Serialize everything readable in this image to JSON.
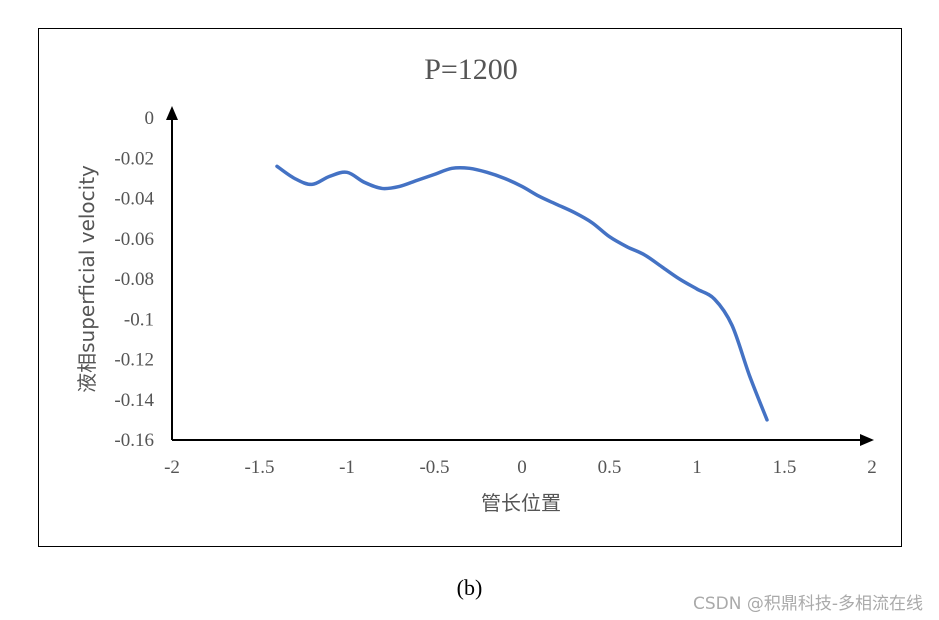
{
  "chart_data": {
    "type": "line",
    "title": "P=1200",
    "xlabel": "管长位置",
    "ylabel": "液相superficial velocity",
    "xlim": [
      -2,
      2
    ],
    "ylim": [
      -0.16,
      0
    ],
    "x_ticks": [
      "-2",
      "-1.5",
      "-1",
      "-0.5",
      "0",
      "0.5",
      "1",
      "1.5",
      "2"
    ],
    "y_ticks": [
      "0",
      "-0.02",
      "-0.04",
      "-0.06",
      "-0.08",
      "-0.1",
      "-0.12",
      "-0.14",
      "-0.16"
    ],
    "series": [
      {
        "color": "#4472c4",
        "x": [
          -1.4,
          -1.3,
          -1.2,
          -1.1,
          -1.0,
          -0.9,
          -0.8,
          -0.7,
          -0.6,
          -0.5,
          -0.4,
          -0.3,
          -0.2,
          -0.1,
          0.0,
          0.1,
          0.2,
          0.3,
          0.4,
          0.5,
          0.6,
          0.7,
          0.8,
          0.9,
          1.0,
          1.1,
          1.2,
          1.3,
          1.4
        ],
        "y": [
          -0.024,
          -0.03,
          -0.033,
          -0.029,
          -0.027,
          -0.032,
          -0.035,
          -0.034,
          -0.031,
          -0.028,
          -0.025,
          -0.025,
          -0.027,
          -0.03,
          -0.034,
          -0.039,
          -0.043,
          -0.047,
          -0.052,
          -0.059,
          -0.064,
          -0.068,
          -0.074,
          -0.08,
          -0.085,
          -0.09,
          -0.103,
          -0.128,
          -0.15
        ]
      }
    ],
    "grid": false,
    "legend": "none"
  },
  "caption": "(b)",
  "watermark": "CSDN @积鼎科技-多相流在线"
}
